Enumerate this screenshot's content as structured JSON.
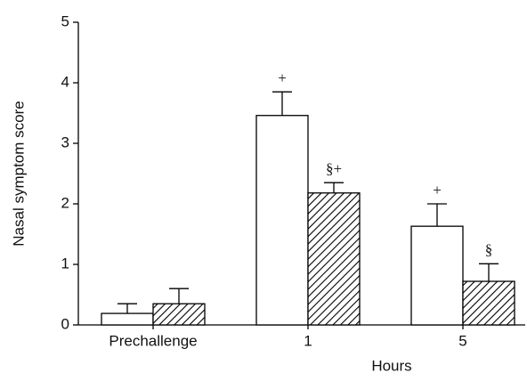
{
  "chart_data": {
    "type": "bar",
    "xlabel": "Hours",
    "ylabel": "Nasal symptom score",
    "categories": [
      "Prechallenge",
      "1",
      "5"
    ],
    "series": [
      {
        "color": "#ffffff",
        "values": [
          0.19,
          3.46,
          1.63
        ],
        "errors": [
          0.16,
          0.39,
          0.37
        ],
        "annotations": [
          null,
          "+",
          "+"
        ]
      },
      {
        "color": "#000000",
        "hatch": true,
        "values": [
          0.35,
          2.18,
          0.72
        ],
        "errors": [
          0.25,
          0.17,
          0.29
        ],
        "annotations": [
          null,
          "§+",
          "§"
        ]
      }
    ],
    "ylim": [
      0,
      5
    ],
    "yticks": [
      0,
      1,
      2,
      3,
      4,
      5
    ],
    "grid": false
  }
}
